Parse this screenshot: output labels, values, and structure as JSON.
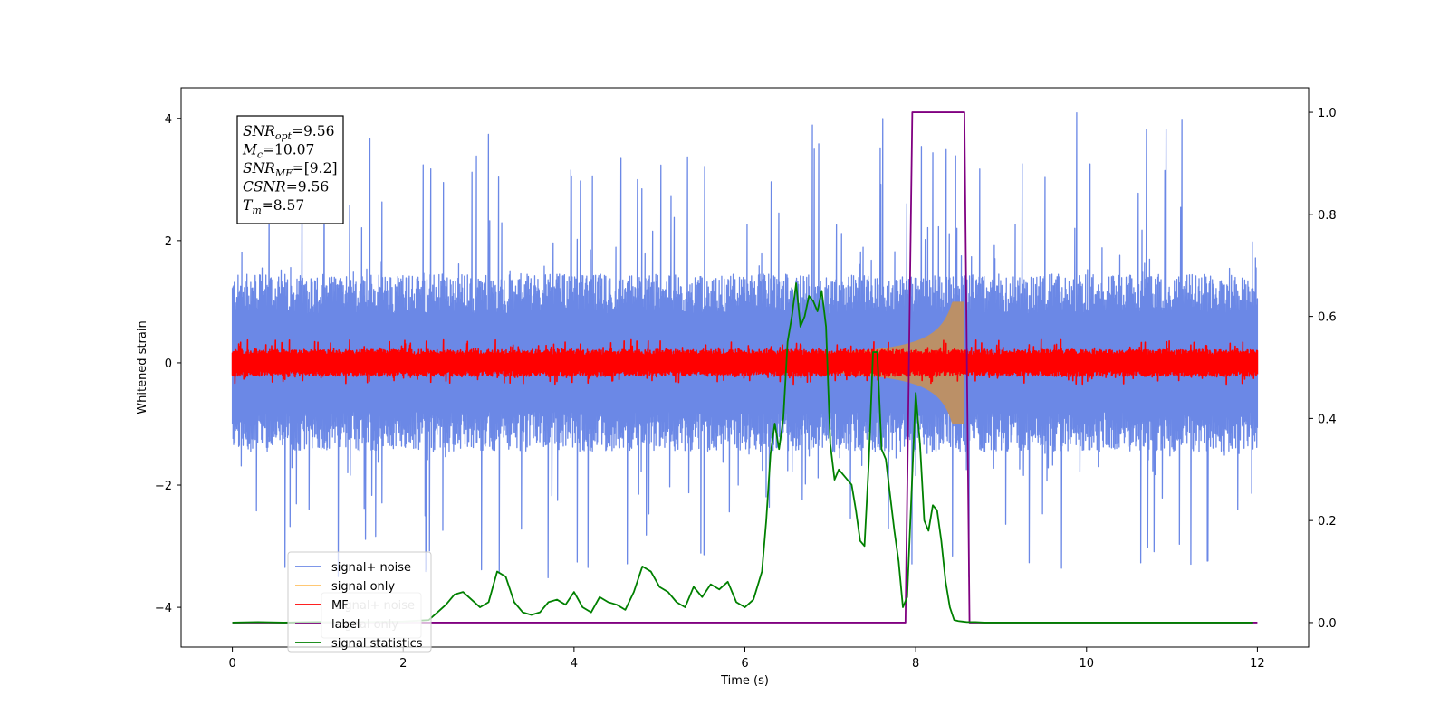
{
  "chart_data": {
    "type": "line",
    "title": "",
    "xlabel": "Time (s)",
    "ylabel": "Whitened strain",
    "xlim": [
      -0.6,
      12.6
    ],
    "ylim": [
      -4.65,
      4.5
    ],
    "y2lim": [
      -0.048,
      1.048
    ],
    "x_ticks": [
      0,
      2,
      4,
      6,
      8,
      10,
      12
    ],
    "y_ticks": [
      -4,
      -2,
      0,
      2,
      4
    ],
    "y2_ticks": [
      0.0,
      0.2,
      0.4,
      0.6,
      0.8,
      1.0
    ],
    "x_tick_labels": [
      "0",
      "2",
      "4",
      "6",
      "8",
      "10",
      "12"
    ],
    "y_tick_labels": [
      "−4",
      "−2",
      "0",
      "2",
      "4"
    ],
    "y2_tick_labels": [
      "0.0",
      "0.2",
      "0.4",
      "0.6",
      "0.8",
      "1.0"
    ],
    "grid": false,
    "legend_position": "lower-left",
    "legend": [
      {
        "label": "signal+ noise",
        "color": "#6b88e6"
      },
      {
        "label": "signal only",
        "color": "#ffc060"
      },
      {
        "label": "MF",
        "color": "#ff0000"
      },
      {
        "label": "label",
        "color": "#800080"
      },
      {
        "label": "signal statistics",
        "color": "#008000"
      }
    ],
    "legend_ghost": [
      "signal+ noise",
      "signal only"
    ],
    "annotation": [
      {
        "main": "SNR",
        "sub": "opt",
        "rest": "=9.56"
      },
      {
        "main": "M",
        "sub": "c",
        "rest": "=10.07"
      },
      {
        "main": "SNR",
        "sub": "MF",
        "rest": "=[9.2]"
      },
      {
        "main": "CSNR",
        "sub": "",
        "rest": "=9.56"
      },
      {
        "main": "T",
        "sub": "m",
        "rest": "=8.57"
      }
    ],
    "series": [
      {
        "name": "signal+ noise",
        "color": "#6b88e6",
        "kind": "noise-band",
        "x_range": [
          0,
          12
        ],
        "typical_range": [
          -1.45,
          1.45
        ],
        "peak_range": [
          -3.6,
          4.1
        ]
      },
      {
        "name": "signal only",
        "color": "#c09060",
        "kind": "chirp-envelope",
        "x_range": [
          6.5,
          8.57
        ],
        "max_amplitude": 1.0
      },
      {
        "name": "MF",
        "color": "#ff0000",
        "kind": "noise-band",
        "x_range": [
          0,
          12
        ],
        "typical_range": [
          -0.22,
          0.22
        ],
        "peak_range": [
          -0.35,
          0.38
        ]
      },
      {
        "name": "label",
        "color": "#800080",
        "axis": "right",
        "x": [
          0,
          7.88,
          7.96,
          8.57,
          8.63,
          12
        ],
        "y": [
          0,
          0,
          1,
          1,
          0,
          0
        ]
      },
      {
        "name": "signal statistics",
        "color": "#008000",
        "axis": "right",
        "x": [
          0,
          0.3,
          0.6,
          1.0,
          1.5,
          2.0,
          2.3,
          2.4,
          2.5,
          2.6,
          2.7,
          2.8,
          2.9,
          3.0,
          3.1,
          3.2,
          3.3,
          3.4,
          3.5,
          3.6,
          3.7,
          3.8,
          3.9,
          4.0,
          4.1,
          4.2,
          4.3,
          4.4,
          4.5,
          4.6,
          4.7,
          4.8,
          4.9,
          5.0,
          5.1,
          5.2,
          5.3,
          5.4,
          5.5,
          5.6,
          5.7,
          5.8,
          5.9,
          6.0,
          6.1,
          6.2,
          6.25,
          6.3,
          6.35,
          6.4,
          6.45,
          6.5,
          6.55,
          6.6,
          6.65,
          6.7,
          6.75,
          6.8,
          6.85,
          6.9,
          6.95,
          7.0,
          7.05,
          7.1,
          7.15,
          7.2,
          7.25,
          7.3,
          7.35,
          7.4,
          7.45,
          7.5,
          7.55,
          7.6,
          7.65,
          7.7,
          7.75,
          7.8,
          7.85,
          7.9,
          7.95,
          8.0,
          8.05,
          8.1,
          8.15,
          8.2,
          8.25,
          8.3,
          8.35,
          8.4,
          8.45,
          8.5,
          8.55,
          8.6,
          8.65,
          8.7,
          8.8,
          9.0,
          9.5,
          10.0,
          11.0,
          11.95
        ],
        "y": [
          0.0,
          0.001,
          0.0,
          0.001,
          0.001,
          0.002,
          0.005,
          0.02,
          0.035,
          0.055,
          0.06,
          0.045,
          0.03,
          0.04,
          0.1,
          0.09,
          0.04,
          0.02,
          0.015,
          0.02,
          0.04,
          0.045,
          0.035,
          0.06,
          0.03,
          0.02,
          0.05,
          0.04,
          0.035,
          0.025,
          0.06,
          0.11,
          0.1,
          0.07,
          0.06,
          0.04,
          0.03,
          0.07,
          0.05,
          0.075,
          0.065,
          0.08,
          0.04,
          0.03,
          0.045,
          0.1,
          0.2,
          0.33,
          0.39,
          0.34,
          0.4,
          0.55,
          0.6,
          0.665,
          0.58,
          0.6,
          0.64,
          0.63,
          0.61,
          0.65,
          0.58,
          0.35,
          0.28,
          0.3,
          0.29,
          0.28,
          0.27,
          0.22,
          0.16,
          0.15,
          0.31,
          0.53,
          0.53,
          0.34,
          0.32,
          0.25,
          0.18,
          0.12,
          0.03,
          0.05,
          0.25,
          0.45,
          0.35,
          0.2,
          0.18,
          0.23,
          0.22,
          0.16,
          0.08,
          0.03,
          0.005,
          0.003,
          0.002,
          0.001,
          0.001,
          0.001,
          0.0,
          0.0,
          0.0,
          0.0,
          0.0,
          0.0
        ]
      }
    ]
  }
}
